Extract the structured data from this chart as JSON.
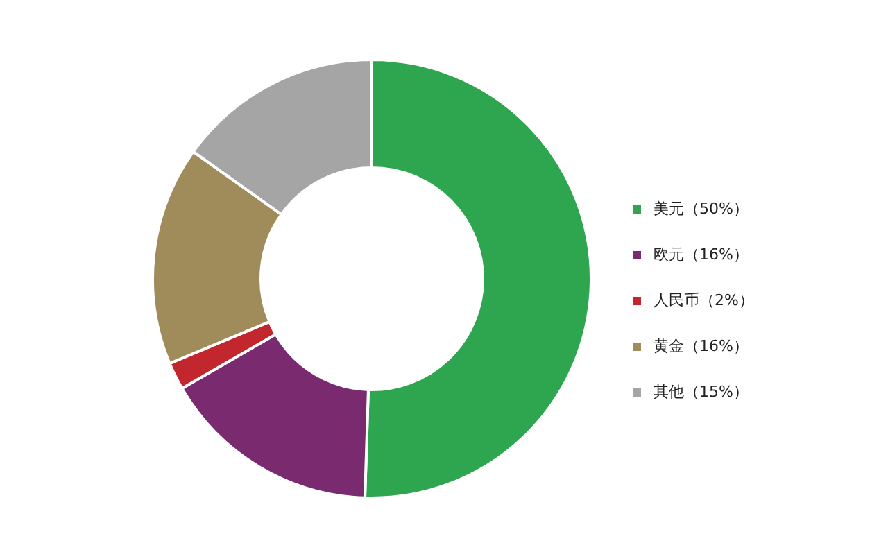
{
  "chart_data": {
    "type": "donut",
    "categories": [
      "美元（50%）",
      "欧元（16%）",
      "人民币（2%）",
      "黄金（16%）",
      "其他（15%）"
    ],
    "values": [
      50,
      16,
      2,
      16,
      15
    ],
    "colors": [
      "#2ea64f",
      "#7a2b6f",
      "#c1272d",
      "#a08c5b",
      "#a5a5a5"
    ],
    "legend": "right"
  }
}
